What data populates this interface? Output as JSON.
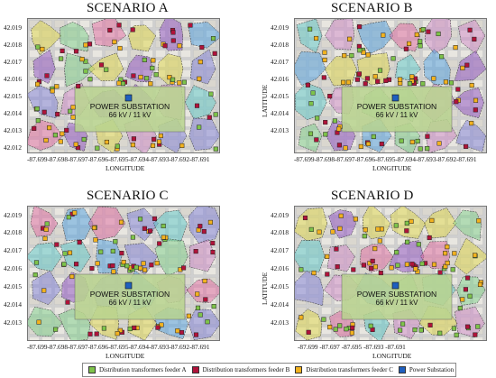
{
  "panels": [
    {
      "title": "SCENARIO A",
      "y_ticks": [
        "42.019",
        "42.018",
        "42.017",
        "42.016",
        "42.015",
        "42.014",
        "42.013",
        "42.012"
      ],
      "x_ticks": "-87.699-87.698-87.697-87.696-87.695-87.694-87.693-87.692-87.691",
      "x_label": "LONGITUDE",
      "y_label": "",
      "substation_label": "POWER SUBSTATION",
      "voltage_label": "66 kV / 11 kV"
    },
    {
      "title": "SCENARIO B",
      "y_ticks": [
        "42.019",
        "42.018",
        "42.017",
        "42.016",
        "42.015",
        "42.014",
        "42.013"
      ],
      "x_ticks": "-87.699-87.698-87.697-87.696-87.695-87.694-87.693-87.692-87.691",
      "x_label": "LONGITUDE",
      "y_label": "LATITUDE",
      "substation_label": "POWER SUBSTATION",
      "voltage_label": "66 kV / 11 kV"
    },
    {
      "title": "SCENARIO C",
      "y_ticks": [
        "42.019",
        "42.018",
        "42.017",
        "42.016",
        "42.015",
        "42.014",
        "42.013"
      ],
      "x_ticks": "-87.699-87.698-87.697-87.696-87.695-87.694-87.693-87.692-87.691",
      "x_label": "LONGITUDE",
      "y_label": "",
      "substation_label": "POWER SUBSTATION",
      "voltage_label": "66 kV / 11 kV"
    },
    {
      "title": "SCENARIO D",
      "y_ticks": [
        "42.019",
        "42.018",
        "42.017",
        "42.016",
        "42.015",
        "42.014",
        "42.013"
      ],
      "x_ticks": "-87.699       -87.697       -87.695       -87.693       -87.691",
      "x_label": "LONGITUDE",
      "y_label": "LATITUDE",
      "substation_label": "POWER SUBSTATION",
      "voltage_label": "66 kV / 11 kV"
    }
  ],
  "legend": [
    {
      "label": "Distribution transformers feeder A",
      "color": "#7ec34a"
    },
    {
      "label": "Distribution transformers feeder B",
      "color": "#b0133a"
    },
    {
      "label": "Distribution transformers feeder C",
      "color": "#f2b21f"
    },
    {
      "label": "Power Substation",
      "color": "#1f5fbf"
    }
  ],
  "zone_colors": [
    "#8e4fc2",
    "#4fa0e0",
    "#e06aa0",
    "#e0d84a",
    "#7ed08a",
    "#7f7fd8",
    "#5cc8c8",
    "#d08ac8"
  ],
  "substation_color": "#1f5fbf"
}
